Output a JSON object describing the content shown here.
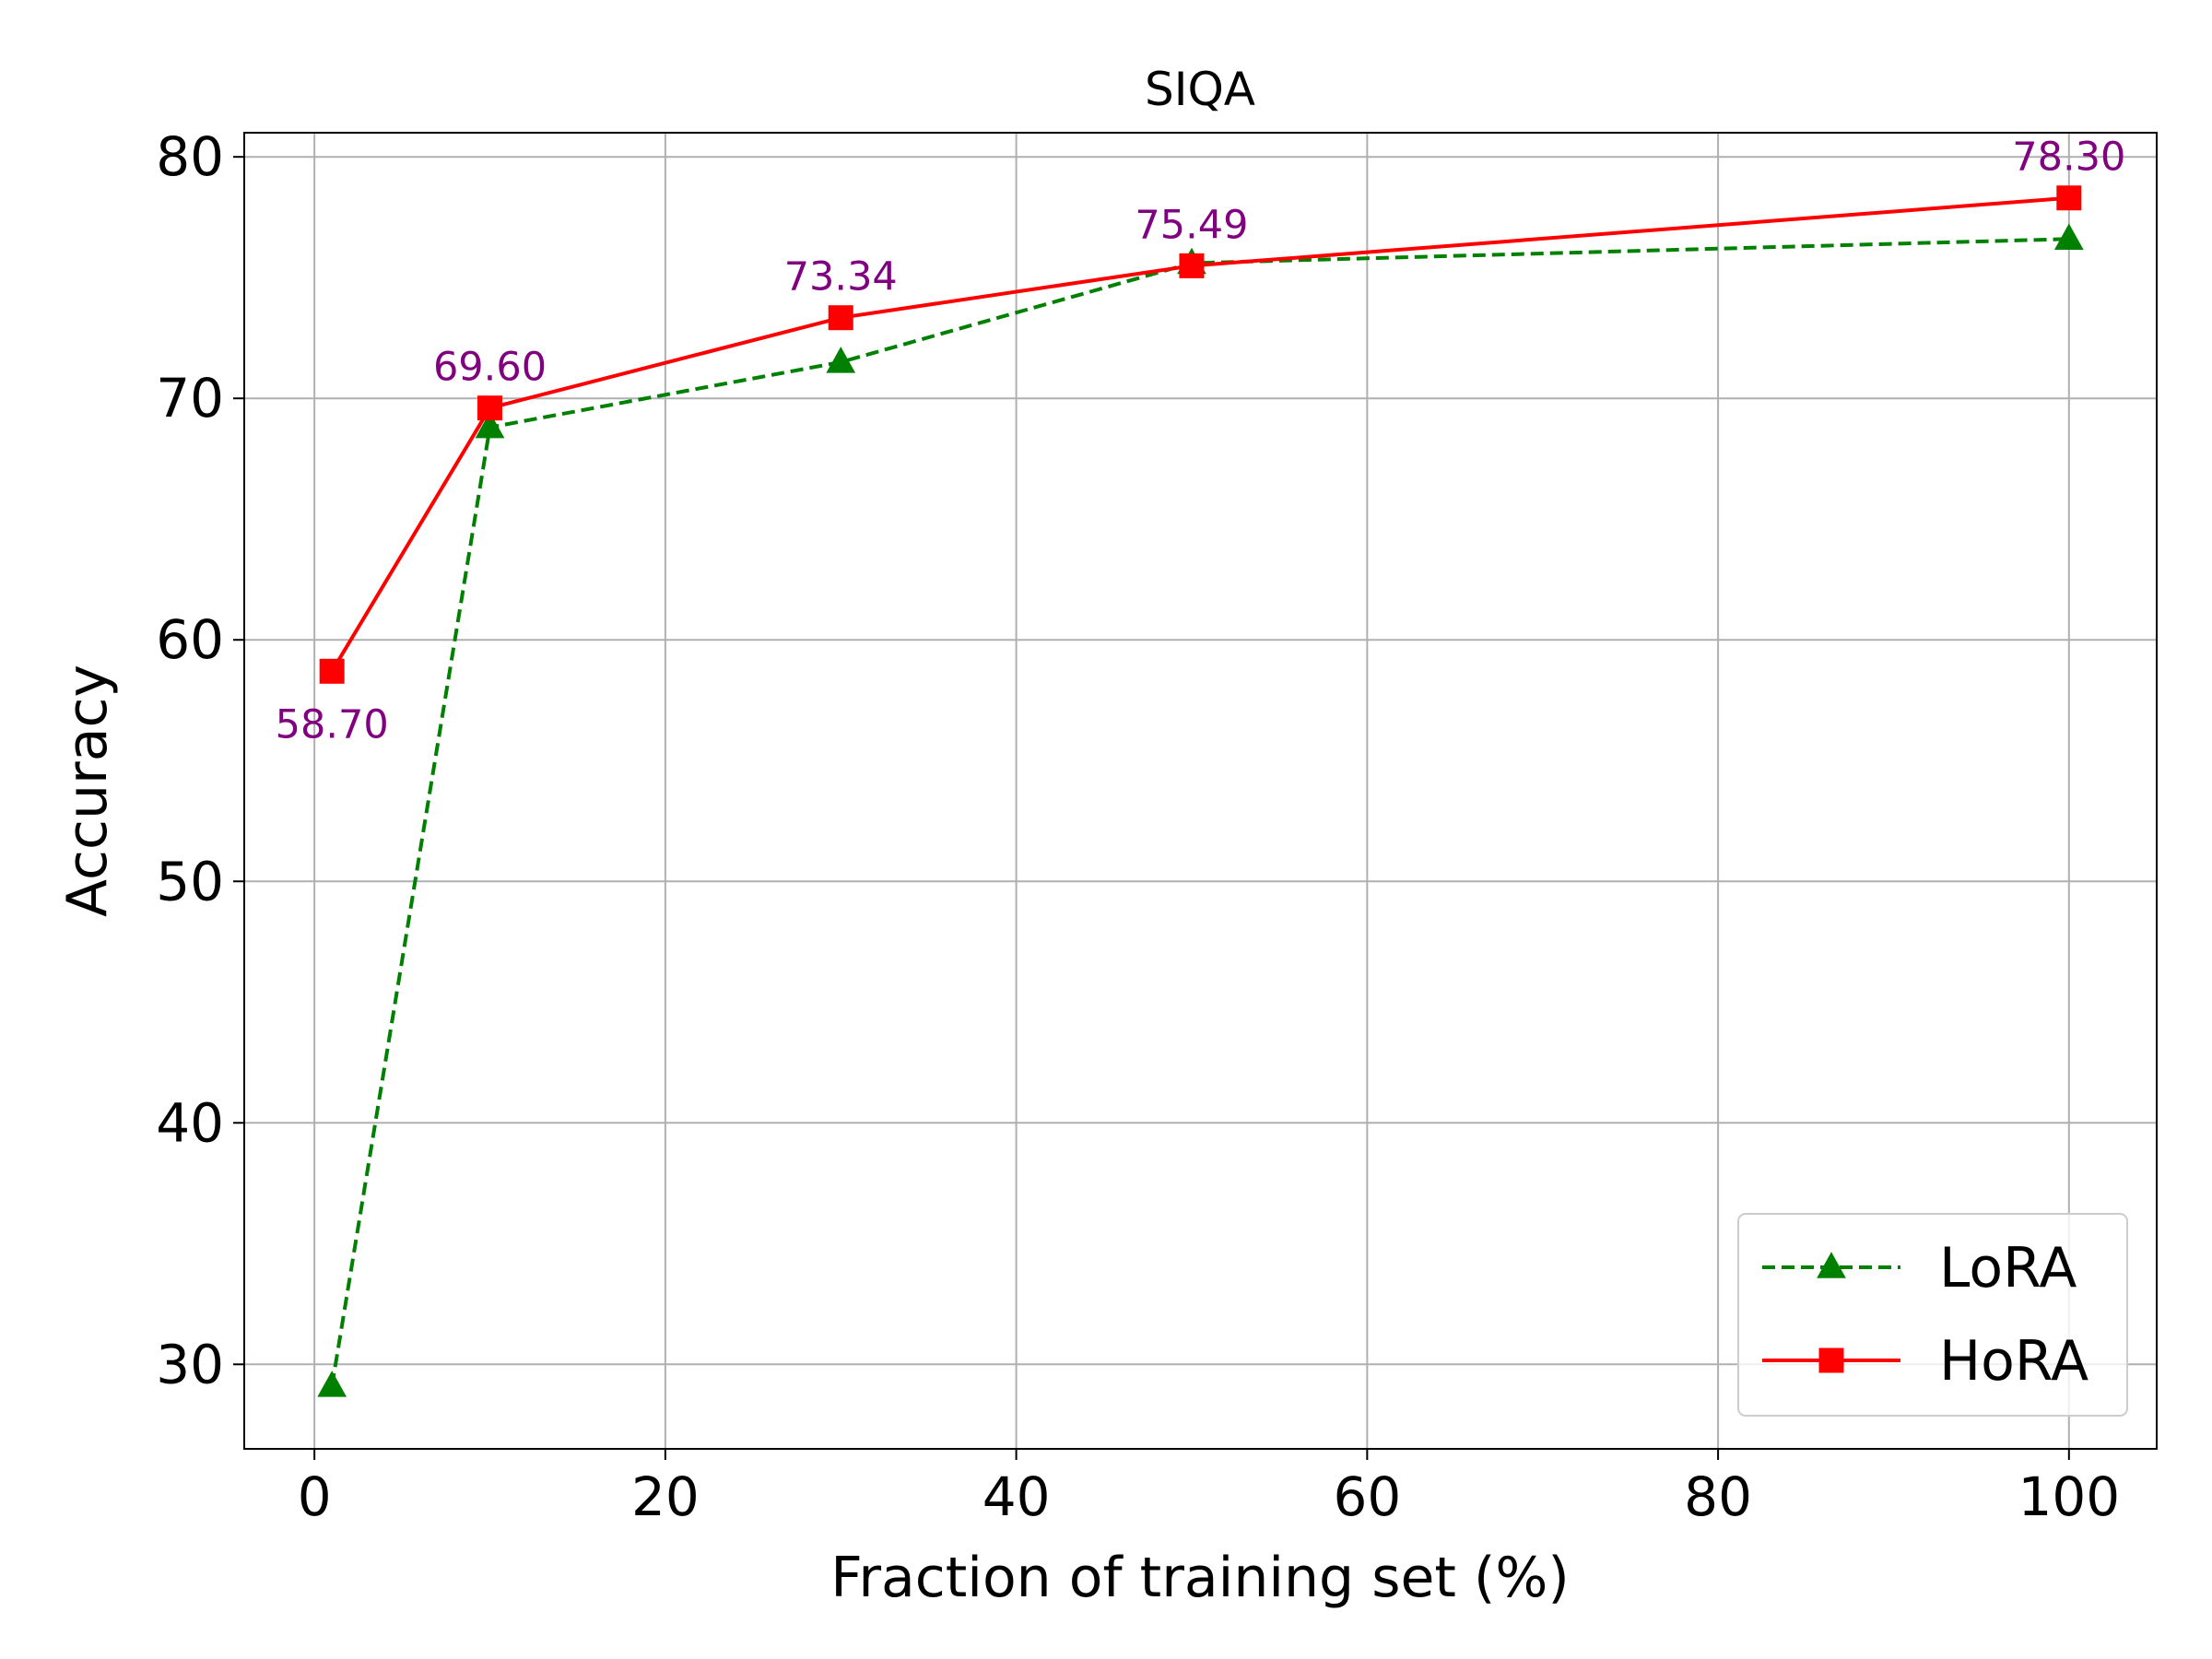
{
  "chart_data": {
    "type": "line",
    "title": "SIQA",
    "xlabel": "Fraction of training set (%)",
    "ylabel": "Accuracy",
    "xlim": [
      -4,
      105
    ],
    "ylim": [
      26.5,
      81
    ],
    "xticks": [
      0,
      20,
      40,
      60,
      80,
      100
    ],
    "yticks": [
      30,
      40,
      50,
      60,
      70,
      80
    ],
    "grid": true,
    "legend_position": "lower-right",
    "x": [
      1,
      10,
      30,
      50,
      100
    ],
    "series": [
      {
        "name": "LoRA",
        "values": [
          29.1,
          68.8,
          71.5,
          75.6,
          76.6
        ],
        "color": "#008000",
        "line_style": "dashed",
        "marker": "triangle"
      },
      {
        "name": "HoRA",
        "values": [
          58.7,
          69.6,
          73.34,
          75.49,
          78.3
        ],
        "color": "#ff0000",
        "line_style": "solid",
        "marker": "square"
      }
    ],
    "annotations": [
      {
        "text": "58.70",
        "x": 1,
        "y": 58.7,
        "position": "below"
      },
      {
        "text": "69.60",
        "x": 10,
        "y": 69.6,
        "position": "above"
      },
      {
        "text": "73.34",
        "x": 30,
        "y": 73.34,
        "position": "above"
      },
      {
        "text": "75.49",
        "x": 50,
        "y": 75.49,
        "position": "above"
      },
      {
        "text": "78.30",
        "x": 100,
        "y": 78.3,
        "position": "above"
      }
    ],
    "annotation_color": "#800080"
  }
}
